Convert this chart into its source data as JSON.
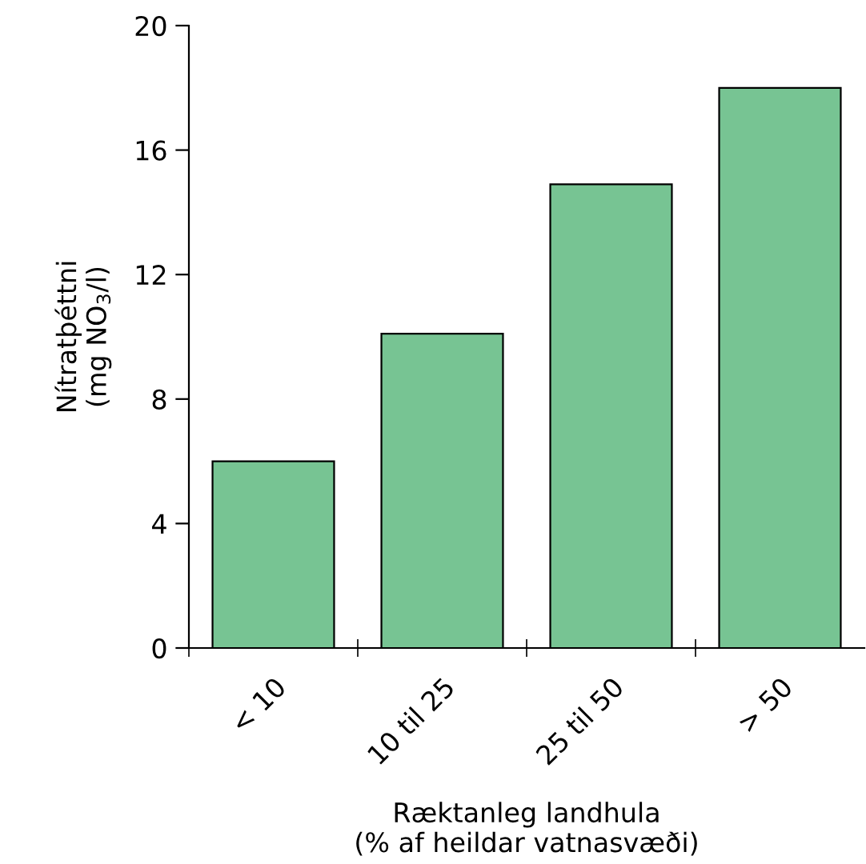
{
  "chart_data": {
    "type": "bar",
    "categories": [
      "< 10",
      "10 til 25",
      "25 til 50",
      "> 50"
    ],
    "values": [
      6.0,
      10.1,
      14.9,
      18.0
    ],
    "color": "#77c493",
    "xlabel": "Ræktanleg landhula\n(% af heildar vatnasvæði)",
    "ylabel": "Nítratþéttni\n(mg NO$_{3}$/l)",
    "ylim": [
      0,
      20
    ],
    "yticks": [
      0,
      4,
      8,
      12,
      16,
      20
    ],
    "grid": false,
    "legend": false
  }
}
